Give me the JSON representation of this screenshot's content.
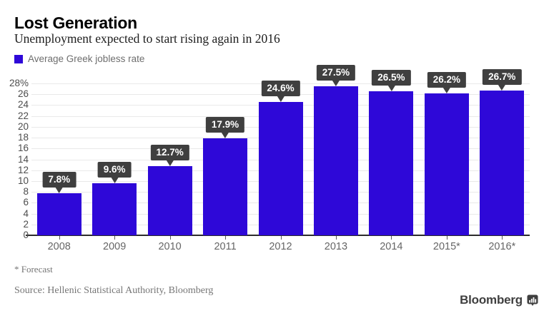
{
  "header": {
    "title": "Lost Generation",
    "subtitle": "Unemployment expected to start rising again in 2016"
  },
  "legend": {
    "swatch_color": "#2e08d8",
    "label": "Average Greek jobless rate"
  },
  "chart_data": {
    "type": "bar",
    "title": "Lost Generation",
    "subtitle": "Unemployment expected to start rising again in 2016",
    "legend_entries": [
      "Average Greek jobless rate"
    ],
    "categories": [
      "2008",
      "2009",
      "2010",
      "2011",
      "2012",
      "2013",
      "2014",
      "2015*",
      "2016*"
    ],
    "values": [
      7.8,
      9.6,
      12.7,
      17.9,
      24.6,
      27.5,
      26.5,
      26.2,
      26.7
    ],
    "value_labels": [
      "7.8%",
      "9.6%",
      "12.7%",
      "17.9%",
      "24.6%",
      "27.5%",
      "26.5%",
      "26.2%",
      "26.7%"
    ],
    "xlabel": "",
    "ylabel": "",
    "ylim": [
      0,
      28
    ],
    "ytick_step": 2,
    "ytick_labels_top_to_bottom": [
      "28%",
      "26",
      "24",
      "22",
      "20",
      "18",
      "16",
      "14",
      "12",
      "10",
      "8",
      "6",
      "4",
      "2",
      "0"
    ],
    "grid": true,
    "legend_position": "top-left",
    "bar_color": "#2e08d8",
    "label_box_color": "#3f3f3f",
    "label_text_color": "#ffffff"
  },
  "footnote": "* Forecast",
  "source": "Source: Hellenic Statistical Authority, Bloomberg",
  "branding": {
    "wordmark": "Bloomberg",
    "icon": "bloomberg-chart-icon",
    "color": "#3f3f3f"
  }
}
